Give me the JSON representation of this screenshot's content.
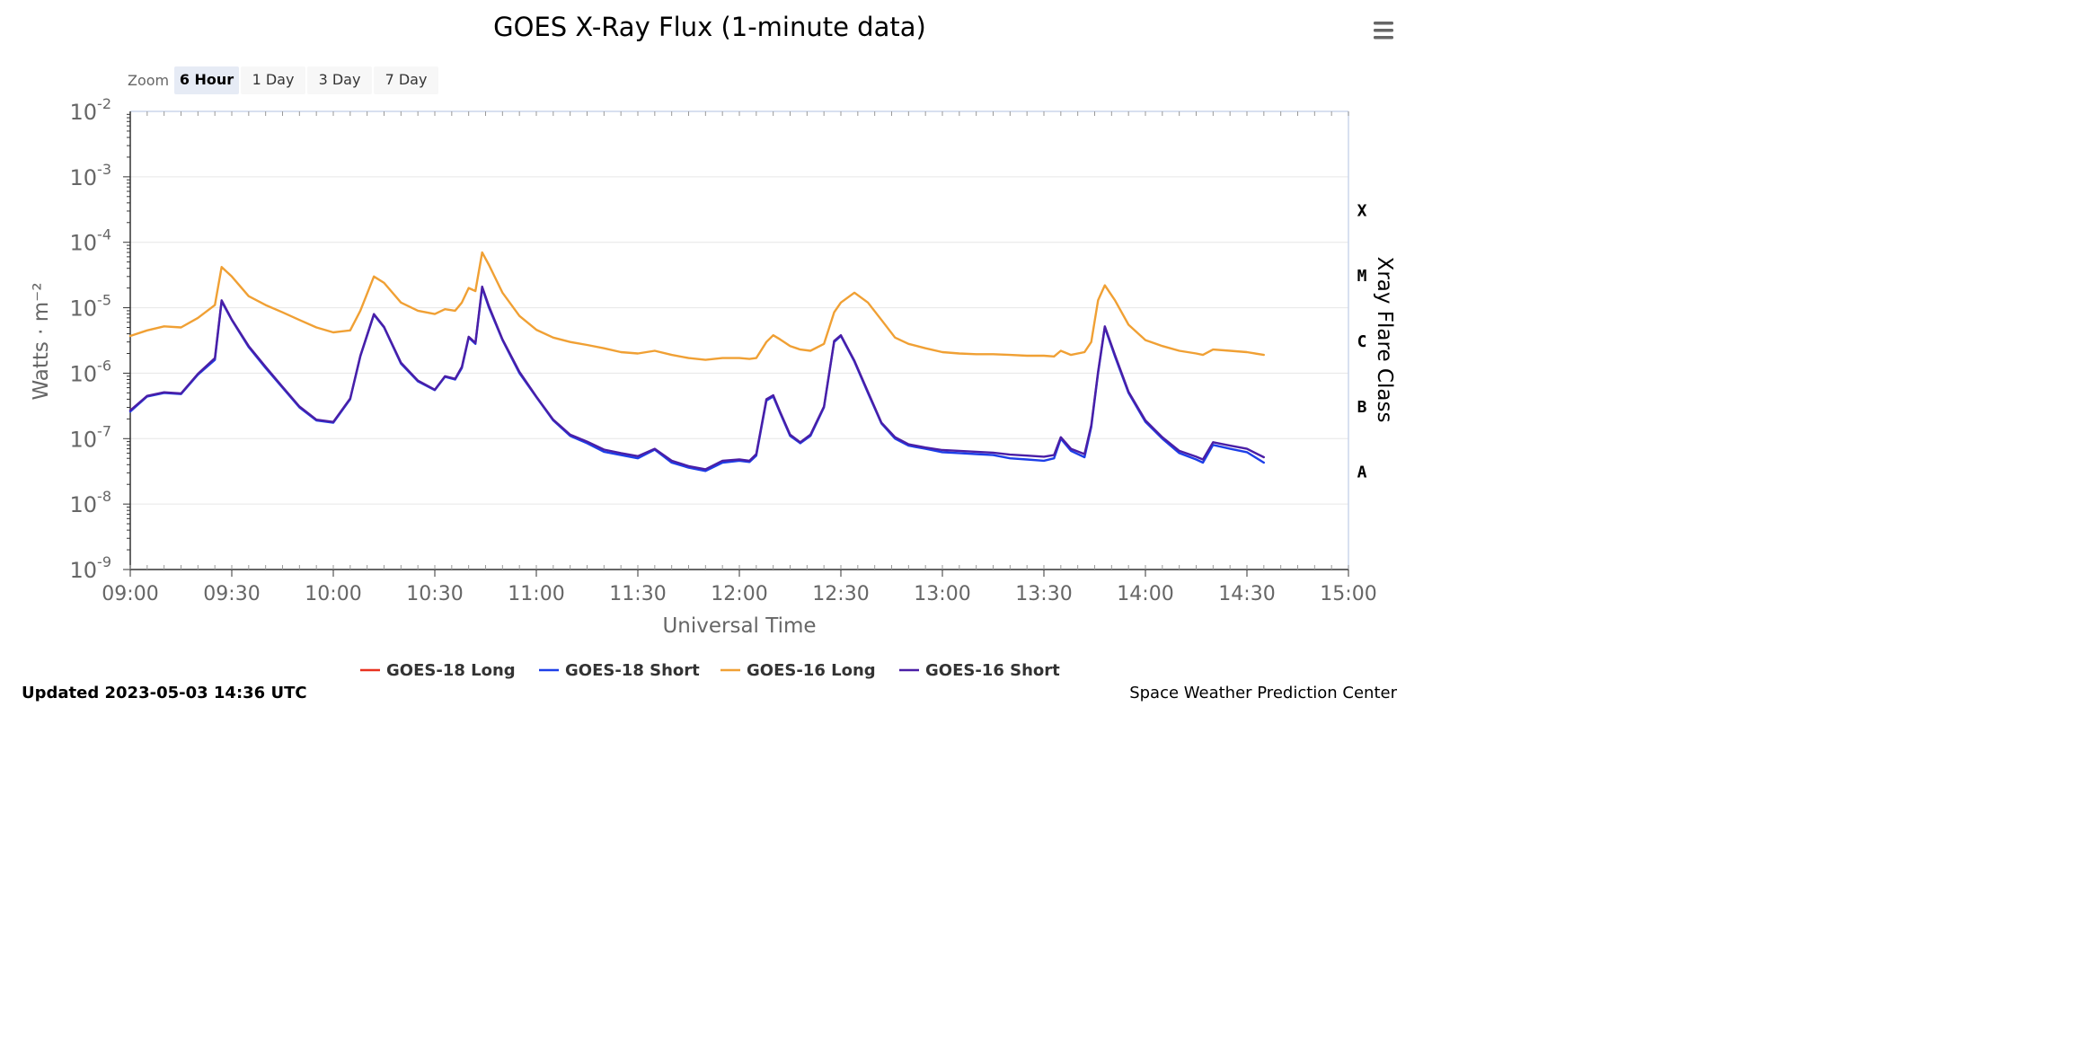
{
  "header": {
    "title": "GOES X-Ray Flux (1-minute data)"
  },
  "menu": {
    "icon": "hamburger-menu-icon"
  },
  "zoom": {
    "label": "Zoom",
    "buttons": [
      {
        "label": "6 Hour",
        "active": true
      },
      {
        "label": "1 Day",
        "active": false
      },
      {
        "label": "3 Day",
        "active": false
      },
      {
        "label": "7 Day",
        "active": false
      }
    ]
  },
  "footer": {
    "updated": "Updated 2023-05-03 14:36 UTC",
    "source": "Space Weather Prediction Center"
  },
  "chart_data": {
    "type": "line",
    "title": "GOES X-Ray Flux (1-minute data)",
    "xlabel": "Universal Time",
    "ylabel": "Watts · m⁻²",
    "ylabel_right": "Xray Flare Class",
    "y_scale": "log",
    "ylim": [
      1e-09,
      0.01
    ],
    "xlim": [
      "09:00",
      "15:00"
    ],
    "x_ticks": [
      "09:00",
      "09:30",
      "10:00",
      "10:30",
      "11:00",
      "11:30",
      "12:00",
      "12:30",
      "13:00",
      "13:30",
      "14:00",
      "14:30",
      "15:00"
    ],
    "y_ticks": [
      {
        "base": "10",
        "exp": "-2"
      },
      {
        "base": "10",
        "exp": "-3"
      },
      {
        "base": "10",
        "exp": "-4"
      },
      {
        "base": "10",
        "exp": "-5"
      },
      {
        "base": "10",
        "exp": "-6"
      },
      {
        "base": "10",
        "exp": "-7"
      },
      {
        "base": "10",
        "exp": "-8"
      },
      {
        "base": "10",
        "exp": "-9"
      }
    ],
    "flare_classes": [
      "X",
      "M",
      "C",
      "B",
      "A"
    ],
    "grid": true,
    "legend_position": "bottom",
    "series": [
      {
        "name": "GOES-18 Long",
        "color": "#e8311f",
        "x": [],
        "y": []
      },
      {
        "name": "GOES-18 Short",
        "color": "#1d3fe8",
        "x": [
          "09:00",
          "09:05",
          "09:10",
          "09:15",
          "09:20",
          "09:25",
          "09:27",
          "09:30",
          "09:35",
          "09:40",
          "09:45",
          "09:50",
          "09:55",
          "10:00",
          "10:05",
          "10:08",
          "10:12",
          "10:15",
          "10:20",
          "10:25",
          "10:30",
          "10:33",
          "10:36",
          "10:38",
          "10:40",
          "10:42",
          "10:44",
          "10:46",
          "10:50",
          "10:55",
          "11:00",
          "11:05",
          "11:10",
          "11:15",
          "11:20",
          "11:25",
          "11:30",
          "11:35",
          "11:40",
          "11:45",
          "11:50",
          "11:55",
          "12:00",
          "12:03",
          "12:05",
          "12:08",
          "12:10",
          "12:12",
          "12:15",
          "12:18",
          "12:21",
          "12:25",
          "12:28",
          "12:30",
          "12:34",
          "12:38",
          "12:42",
          "12:46",
          "12:50",
          "12:55",
          "13:00",
          "13:05",
          "13:10",
          "13:15",
          "13:20",
          "13:25",
          "13:30",
          "13:33",
          "13:35",
          "13:38",
          "13:42",
          "13:44",
          "13:46",
          "13:48",
          "13:51",
          "13:55",
          "14:00",
          "14:05",
          "14:10",
          "14:15",
          "14:17",
          "14:20",
          "14:25",
          "14:30",
          "14:35"
        ],
        "y": [
          2.6e-07,
          4.4e-07,
          5e-07,
          4.8e-07,
          9.5e-07,
          1.6e-06,
          1.25e-05,
          6.5e-06,
          2.5e-06,
          1.2e-06,
          6e-07,
          3e-07,
          1.9e-07,
          1.75e-07,
          4e-07,
          1.8e-06,
          7.8e-06,
          5e-06,
          1.4e-06,
          7.5e-07,
          5.5e-07,
          8.8e-07,
          8e-07,
          1.2e-06,
          3.5e-06,
          2.8e-06,
          2e-05,
          1e-05,
          3.2e-06,
          1e-06,
          4.3e-07,
          1.9e-07,
          1.1e-07,
          8.5e-08,
          6.3e-08,
          5.6e-08,
          5e-08,
          6.8e-08,
          4.3e-08,
          3.6e-08,
          3.2e-08,
          4.3e-08,
          4.6e-08,
          4.4e-08,
          5.5e-08,
          3.8e-07,
          4.4e-07,
          2.5e-07,
          1.1e-07,
          8.5e-08,
          1.1e-07,
          3e-07,
          3e-06,
          3.7e-06,
          1.5e-06,
          5e-07,
          1.7e-07,
          1e-07,
          7.8e-08,
          7e-08,
          6.2e-08,
          6e-08,
          5.8e-08,
          5.6e-08,
          5e-08,
          4.8e-08,
          4.6e-08,
          5e-08,
          1e-07,
          6.5e-08,
          5.2e-08,
          1.5e-07,
          1e-06,
          5e-06,
          1.8e-06,
          5e-07,
          1.8e-07,
          1e-07,
          6e-08,
          4.8e-08,
          4.3e-08,
          8e-08,
          7e-08,
          6.2e-08,
          4.3e-08
        ]
      },
      {
        "name": "GOES-16 Long",
        "color": "#f0a034",
        "x": [
          "09:00",
          "09:05",
          "09:10",
          "09:15",
          "09:20",
          "09:25",
          "09:27",
          "09:30",
          "09:35",
          "09:40",
          "09:45",
          "09:50",
          "09:55",
          "10:00",
          "10:05",
          "10:08",
          "10:12",
          "10:15",
          "10:20",
          "10:25",
          "10:30",
          "10:33",
          "10:36",
          "10:38",
          "10:40",
          "10:42",
          "10:44",
          "10:46",
          "10:50",
          "10:55",
          "11:00",
          "11:05",
          "11:10",
          "11:15",
          "11:20",
          "11:25",
          "11:30",
          "11:35",
          "11:40",
          "11:45",
          "11:50",
          "11:55",
          "12:00",
          "12:03",
          "12:05",
          "12:08",
          "12:10",
          "12:12",
          "12:15",
          "12:18",
          "12:21",
          "12:25",
          "12:28",
          "12:30",
          "12:34",
          "12:38",
          "12:42",
          "12:46",
          "12:50",
          "12:55",
          "13:00",
          "13:05",
          "13:10",
          "13:15",
          "13:20",
          "13:25",
          "13:30",
          "13:33",
          "13:35",
          "13:38",
          "13:42",
          "13:44",
          "13:46",
          "13:48",
          "13:51",
          "13:55",
          "14:00",
          "14:05",
          "14:10",
          "14:15",
          "14:17",
          "14:20",
          "14:25",
          "14:30",
          "14:35"
        ],
        "y": [
          3.7e-06,
          4.5e-06,
          5.2e-06,
          5e-06,
          7e-06,
          1.1e-05,
          4.2e-05,
          3e-05,
          1.5e-05,
          1.1e-05,
          8.5e-06,
          6.5e-06,
          5e-06,
          4.2e-06,
          4.5e-06,
          9e-06,
          3e-05,
          2.4e-05,
          1.2e-05,
          9e-06,
          8e-06,
          9.5e-06,
          9e-06,
          1.2e-05,
          2e-05,
          1.8e-05,
          7e-05,
          4.5e-05,
          1.7e-05,
          7.5e-06,
          4.6e-06,
          3.5e-06,
          3e-06,
          2.7e-06,
          2.4e-06,
          2.1e-06,
          2e-06,
          2.2e-06,
          1.9e-06,
          1.7e-06,
          1.6e-06,
          1.7e-06,
          1.7e-06,
          1.65e-06,
          1.7e-06,
          3e-06,
          3.8e-06,
          3.3e-06,
          2.6e-06,
          2.3e-06,
          2.2e-06,
          2.8e-06,
          8.5e-06,
          1.2e-05,
          1.7e-05,
          1.2e-05,
          6.5e-06,
          3.5e-06,
          2.8e-06,
          2.4e-06,
          2.1e-06,
          2e-06,
          1.95e-06,
          1.95e-06,
          1.9e-06,
          1.85e-06,
          1.85e-06,
          1.8e-06,
          2.2e-06,
          1.9e-06,
          2.1e-06,
          3e-06,
          1.3e-05,
          2.2e-05,
          1.3e-05,
          5.5e-06,
          3.2e-06,
          2.6e-06,
          2.2e-06,
          2e-06,
          1.9e-06,
          2.3e-06,
          2.2e-06,
          2.1e-06,
          1.9e-06
        ]
      },
      {
        "name": "GOES-16 Short",
        "color": "#4a1ea6",
        "x": [
          "09:00",
          "09:05",
          "09:10",
          "09:15",
          "09:20",
          "09:25",
          "09:27",
          "09:30",
          "09:35",
          "09:40",
          "09:45",
          "09:50",
          "09:55",
          "10:00",
          "10:05",
          "10:08",
          "10:12",
          "10:15",
          "10:20",
          "10:25",
          "10:30",
          "10:33",
          "10:36",
          "10:38",
          "10:40",
          "10:42",
          "10:44",
          "10:46",
          "10:50",
          "10:55",
          "11:00",
          "11:05",
          "11:10",
          "11:15",
          "11:20",
          "11:25",
          "11:30",
          "11:35",
          "11:40",
          "11:45",
          "11:50",
          "11:55",
          "12:00",
          "12:03",
          "12:05",
          "12:08",
          "12:10",
          "12:12",
          "12:15",
          "12:18",
          "12:21",
          "12:25",
          "12:28",
          "12:30",
          "12:34",
          "12:38",
          "12:42",
          "12:46",
          "12:50",
          "12:55",
          "13:00",
          "13:05",
          "13:10",
          "13:15",
          "13:20",
          "13:25",
          "13:30",
          "13:33",
          "13:35",
          "13:38",
          "13:42",
          "13:44",
          "13:46",
          "13:48",
          "13:51",
          "13:55",
          "14:00",
          "14:05",
          "14:10",
          "14:15",
          "14:17",
          "14:20",
          "14:25",
          "14:30",
          "14:35"
        ],
        "y": [
          2.7e-07,
          4.5e-07,
          5.1e-07,
          4.9e-07,
          9.8e-07,
          1.7e-06,
          1.3e-05,
          6.6e-06,
          2.6e-06,
          1.25e-06,
          6.2e-07,
          3.1e-07,
          1.95e-07,
          1.8e-07,
          4.1e-07,
          1.85e-06,
          8e-06,
          5.1e-06,
          1.45e-06,
          7.7e-07,
          5.6e-07,
          9e-07,
          8.2e-07,
          1.25e-06,
          3.6e-06,
          2.9e-06,
          2.1e-05,
          1.05e-05,
          3.3e-06,
          1.05e-06,
          4.4e-07,
          1.95e-07,
          1.15e-07,
          9e-08,
          6.8e-08,
          6e-08,
          5.4e-08,
          7e-08,
          4.6e-08,
          3.8e-08,
          3.4e-08,
          4.6e-08,
          4.8e-08,
          4.6e-08,
          5.8e-08,
          4e-07,
          4.6e-07,
          2.6e-07,
          1.15e-07,
          8.8e-08,
          1.15e-07,
          3.1e-07,
          3.1e-06,
          3.8e-06,
          1.55e-06,
          5.2e-07,
          1.75e-07,
          1.05e-07,
          8.2e-08,
          7.3e-08,
          6.7e-08,
          6.5e-08,
          6.3e-08,
          6.1e-08,
          5.7e-08,
          5.5e-08,
          5.3e-08,
          5.6e-08,
          1.05e-07,
          7e-08,
          5.8e-08,
          1.6e-07,
          1.05e-06,
          5.2e-06,
          1.9e-06,
          5.2e-07,
          1.9e-07,
          1.05e-07,
          6.5e-08,
          5.3e-08,
          4.8e-08,
          8.8e-08,
          7.8e-08,
          7e-08,
          5.2e-08
        ]
      }
    ]
  }
}
